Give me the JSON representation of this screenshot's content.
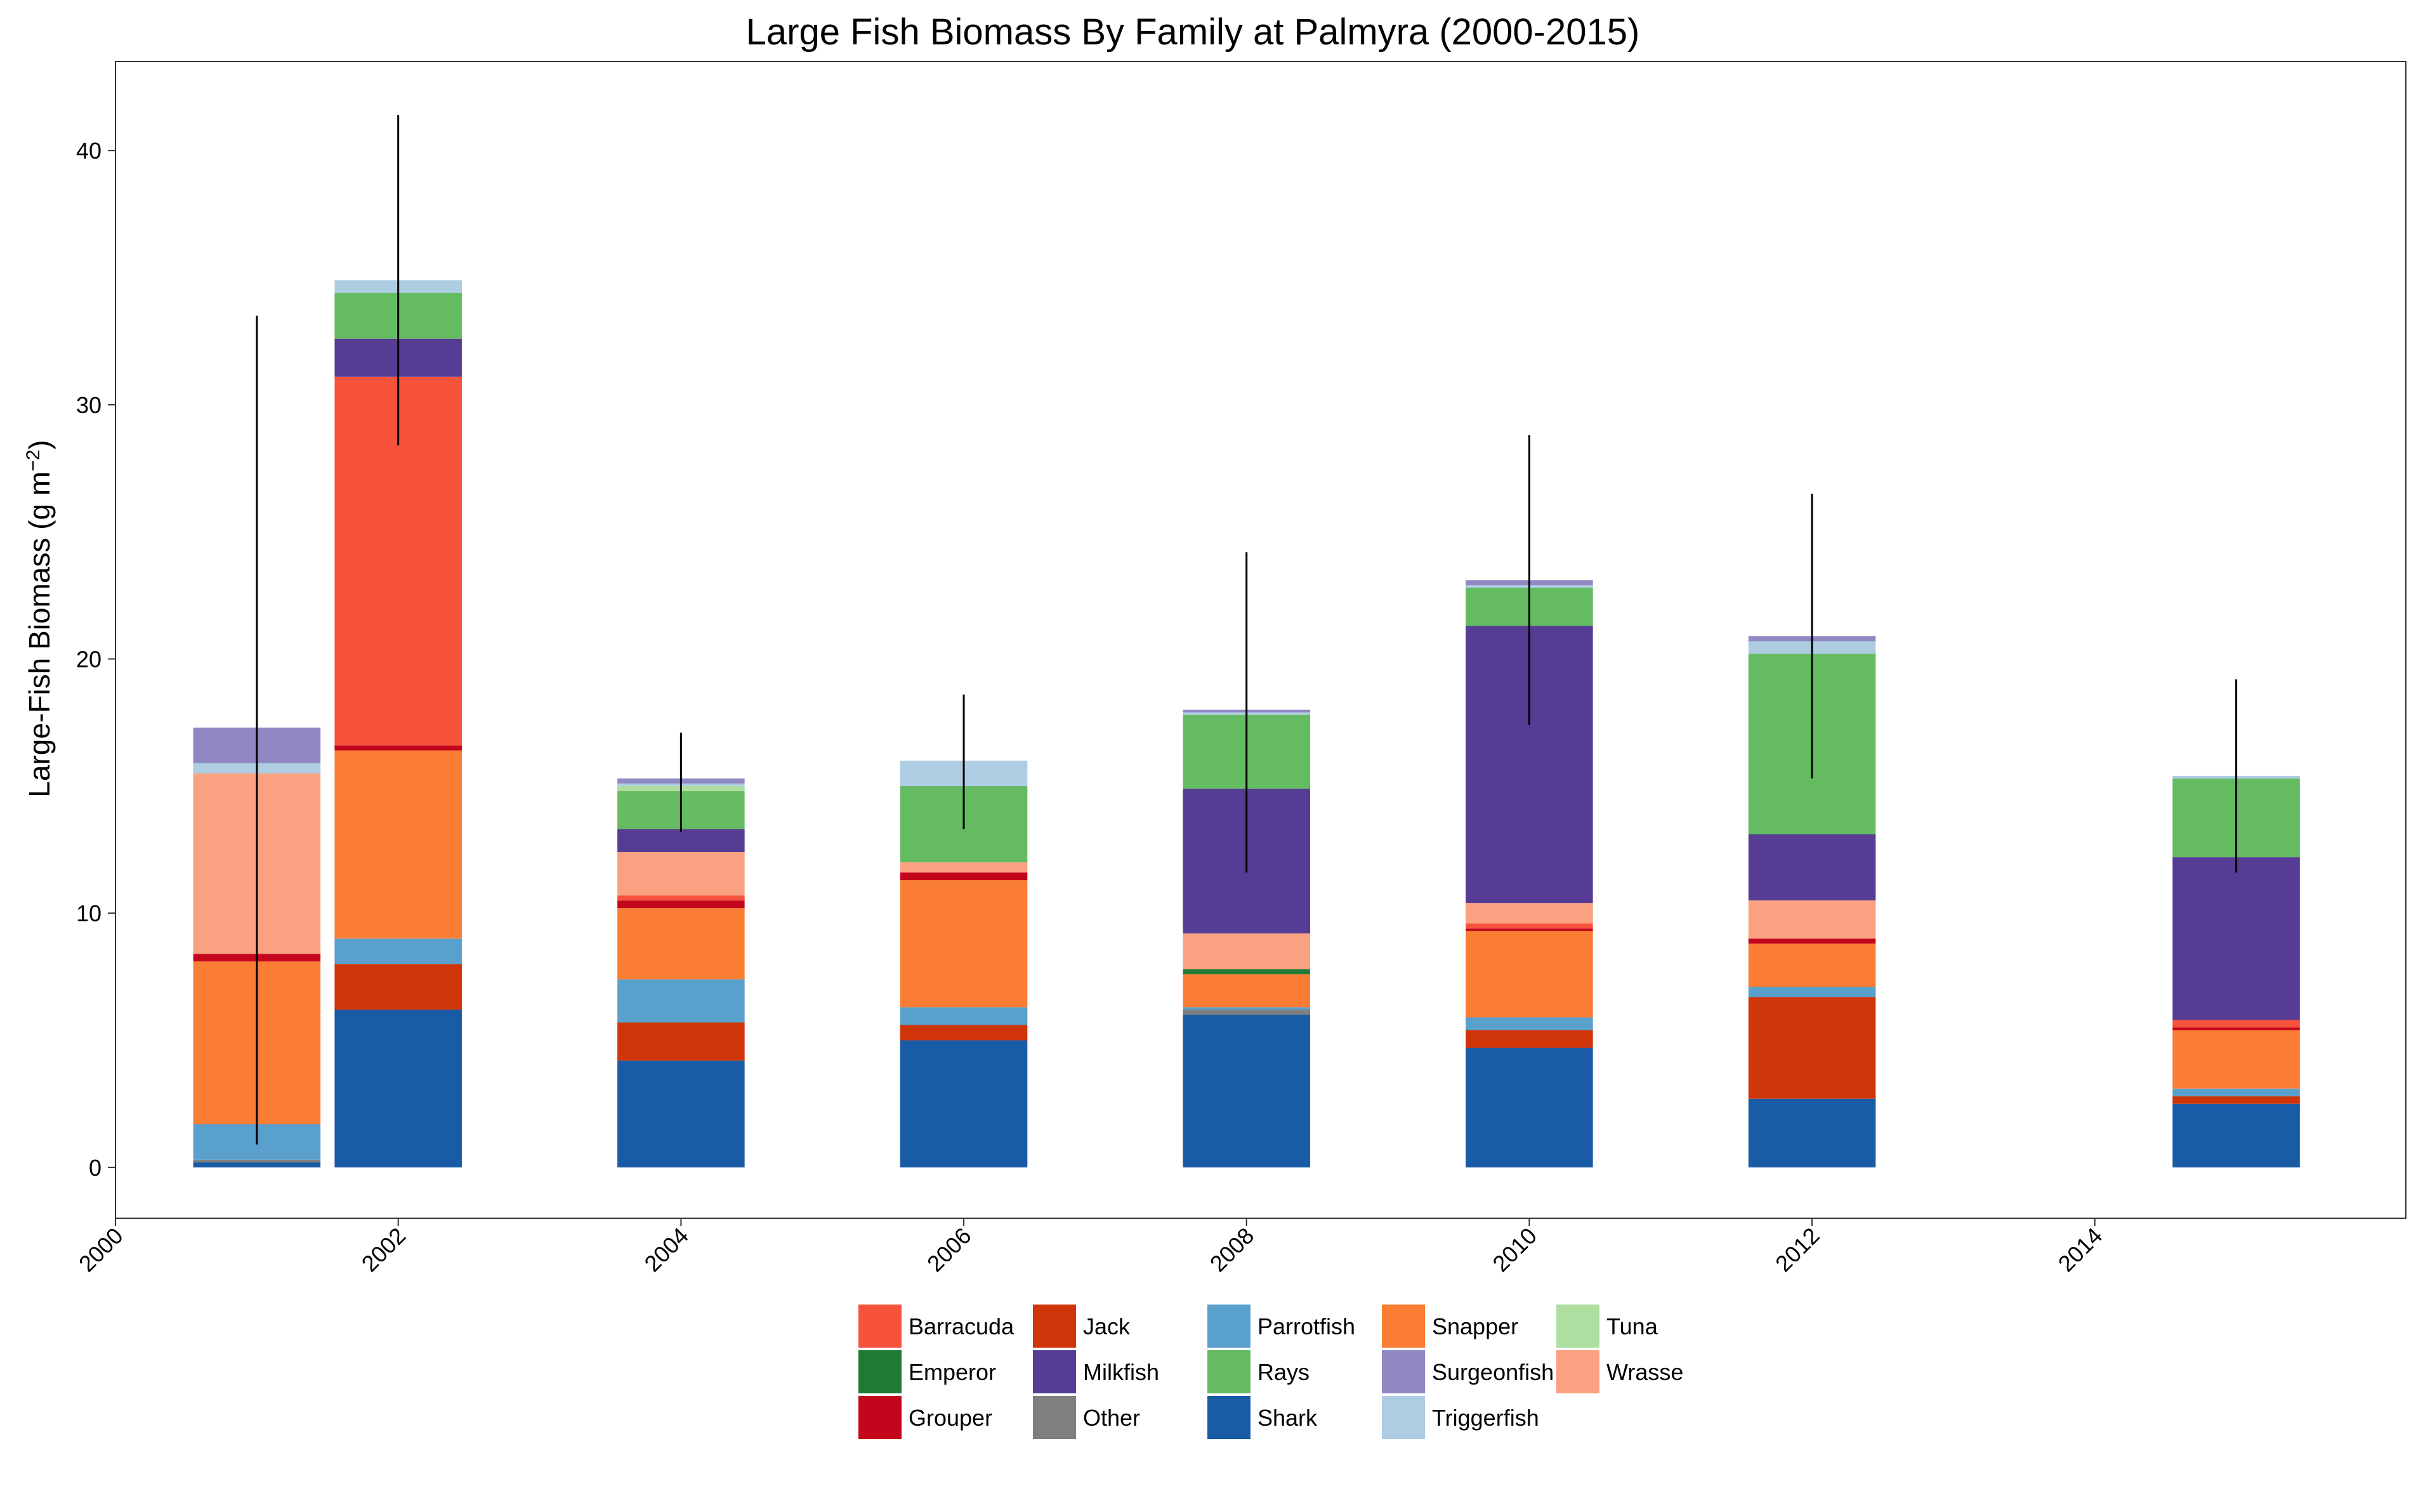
{
  "chart_data": {
    "type": "bar",
    "stacked": true,
    "title": "Large Fish Biomass By Family at Palmyra (2000-2015)",
    "ylabel_main": "Large-Fish Biomass (g m",
    "ylabel_sup": "−2",
    "ylabel_end": ")",
    "xlabel": "",
    "xlim": [
      2000,
      2016.2
    ],
    "ylim": [
      -2,
      43.5
    ],
    "bar_width_years": 0.9,
    "x_ticks": [
      "2000",
      "2002",
      "2004",
      "2006",
      "2008",
      "2010",
      "2012",
      "2014"
    ],
    "y_ticks": [
      "0",
      "10",
      "20",
      "30",
      "40"
    ],
    "grid": false,
    "legend_position": "bottom",
    "x": [
      2001,
      2002,
      2004,
      2006,
      2008,
      2010,
      2012,
      2015
    ],
    "stack_order": [
      "Shark",
      "Other",
      "Jack",
      "Parrotfish",
      "Snapper",
      "Emperor",
      "Grouper",
      "Barracuda",
      "Wrasse",
      "Milkfish",
      "Rays",
      "Tuna",
      "Triggerfish",
      "Surgeonfish"
    ],
    "series": [
      {
        "name": "Shark",
        "color": "#1a5ba6",
        "values": [
          0.2,
          6.2,
          4.2,
          5.0,
          6.0,
          4.7,
          2.7,
          2.5
        ]
      },
      {
        "name": "Other",
        "color": "#7f7f7f",
        "values": [
          0.1,
          0,
          0,
          0,
          0.2,
          0,
          0,
          0
        ]
      },
      {
        "name": "Jack",
        "color": "#d03509",
        "values": [
          0,
          1.8,
          1.5,
          0.6,
          0,
          0.7,
          4.0,
          0.3
        ]
      },
      {
        "name": "Parrotfish",
        "color": "#5aa0cc",
        "values": [
          1.4,
          1.0,
          1.7,
          0.7,
          0.1,
          0.5,
          0.4,
          0.3
        ]
      },
      {
        "name": "Snapper",
        "color": "#fb7c33",
        "values": [
          6.4,
          7.4,
          2.8,
          5.0,
          1.3,
          3.4,
          1.7,
          2.3
        ]
      },
      {
        "name": "Emperor",
        "color": "#1f7a35",
        "values": [
          0,
          0,
          0,
          0,
          0.2,
          0,
          0,
          0
        ]
      },
      {
        "name": "Grouper",
        "color": "#c3061c",
        "values": [
          0.3,
          0.2,
          0.3,
          0.3,
          0,
          0.1,
          0.2,
          0.1
        ]
      },
      {
        "name": "Barracuda",
        "color": "#f7523c",
        "values": [
          0,
          14.5,
          0.2,
          0,
          0,
          0.2,
          0,
          0.3
        ]
      },
      {
        "name": "Wrasse",
        "color": "#f9a180",
        "values": [
          7.1,
          0,
          1.7,
          0.4,
          1.4,
          0.8,
          1.5,
          0
        ]
      },
      {
        "name": "Milkfish",
        "color": "#573c94",
        "values": [
          0,
          1.5,
          0.9,
          0,
          5.7,
          10.9,
          2.6,
          6.4
        ]
      },
      {
        "name": "Rays",
        "color": "#65bb62",
        "values": [
          0,
          1.8,
          1.5,
          3.0,
          2.9,
          1.5,
          7.1,
          3.1
        ]
      },
      {
        "name": "Tuna",
        "color": "#aedfa0",
        "values": [
          0,
          0,
          0.2,
          0,
          0,
          0,
          0,
          0
        ]
      },
      {
        "name": "Triggerfish",
        "color": "#aecde3",
        "values": [
          0.4,
          0.5,
          0.1,
          1.0,
          0.1,
          0.1,
          0.5,
          0.1
        ]
      },
      {
        "name": "Surgeonfish",
        "color": "#8f88c2",
        "values": [
          1.4,
          0,
          0.2,
          0,
          0.1,
          0.2,
          0.2,
          0
        ]
      }
    ],
    "error_bars": [
      {
        "x": 2001,
        "low": 0.9,
        "high": 33.5
      },
      {
        "x": 2002,
        "low": 28.4,
        "high": 41.4
      },
      {
        "x": 2004,
        "low": 13.2,
        "high": 17.1
      },
      {
        "x": 2006,
        "low": 13.3,
        "high": 18.6
      },
      {
        "x": 2008,
        "low": 11.6,
        "high": 24.2
      },
      {
        "x": 2010,
        "low": 17.4,
        "high": 28.8
      },
      {
        "x": 2012,
        "low": 15.3,
        "high": 26.5
      },
      {
        "x": 2015,
        "low": 11.6,
        "high": 19.2
      }
    ],
    "legend": [
      [
        "Barracuda",
        "Emperor",
        "Grouper"
      ],
      [
        "Jack",
        "Milkfish",
        "Other"
      ],
      [
        "Parrotfish",
        "Rays",
        "Shark"
      ],
      [
        "Snapper",
        "Surgeonfish",
        "Triggerfish"
      ],
      [
        "Tuna",
        "Wrasse"
      ]
    ]
  }
}
